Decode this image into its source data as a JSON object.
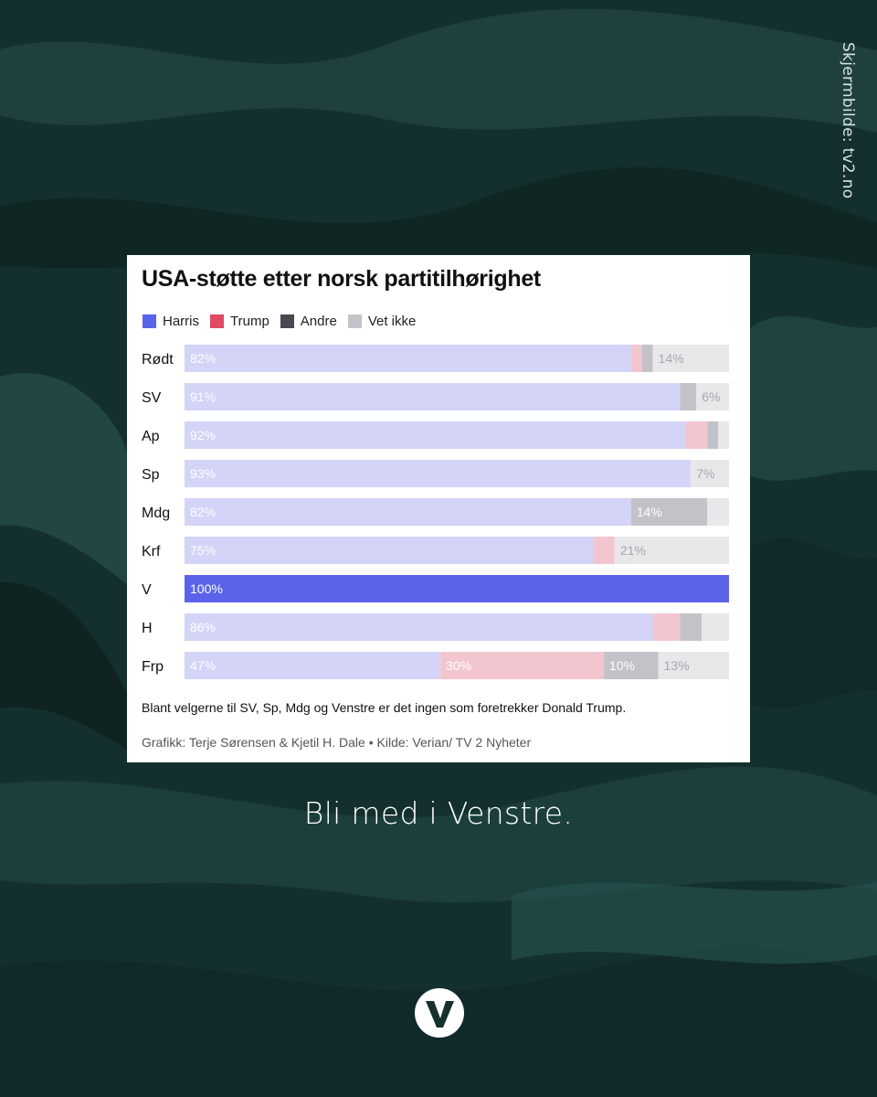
{
  "credit": "Skjermbilde: tv2.no",
  "cta": "Bli med i Venstre.",
  "logo_icon": "venstre-logo-icon",
  "colors": {
    "background": "#15302f",
    "harris": "#5b63ea",
    "trump": "#e04a63",
    "andre": "#4a4750",
    "vetikke": "#c4c4c8"
  },
  "chart_data": {
    "type": "bar",
    "orientation": "horizontal",
    "stacked": true,
    "title": "USA-støtte etter norsk partitilhørighet",
    "caption": "Blant velgerne til SV, Sp, Mdg og Venstre er det ingen som foretrekker Donald Trump.",
    "source": "Grafikk: Terje Sørensen & Kjetil H. Dale • Kilde: Verian/ TV 2 Nyheter",
    "legend": [
      "Harris",
      "Trump",
      "Andre",
      "Vet ikke"
    ],
    "legend_position": "top-left",
    "categories": [
      "Rødt",
      "SV",
      "Ap",
      "Sp",
      "Mdg",
      "Krf",
      "V",
      "H",
      "Frp"
    ],
    "highlight": "V",
    "series": [
      {
        "name": "Harris",
        "values": [
          82,
          91,
          92,
          93,
          82,
          75,
          100,
          86,
          47
        ]
      },
      {
        "name": "Trump",
        "values": [
          2,
          0,
          4,
          0,
          0,
          4,
          0,
          5,
          30
        ]
      },
      {
        "name": "Andre",
        "values": [
          2,
          3,
          2,
          0,
          14,
          0,
          0,
          4,
          10
        ]
      },
      {
        "name": "Vet ikke",
        "values": [
          14,
          6,
          2,
          7,
          4,
          21,
          0,
          5,
          13
        ]
      }
    ],
    "labels": [
      [
        "82%",
        "",
        "",
        "14%"
      ],
      [
        "91%",
        "",
        "",
        "6%"
      ],
      [
        "92%",
        "",
        "",
        ""
      ],
      [
        "93%",
        "",
        "",
        "7%"
      ],
      [
        "82%",
        "",
        "14%",
        ""
      ],
      [
        "75%",
        "",
        "",
        "21%"
      ],
      [
        "100%",
        "",
        "",
        ""
      ],
      [
        "86%",
        "",
        "",
        ""
      ],
      [
        "47%",
        "30%",
        "10%",
        "13%"
      ]
    ],
    "xlim": [
      0,
      100
    ]
  }
}
